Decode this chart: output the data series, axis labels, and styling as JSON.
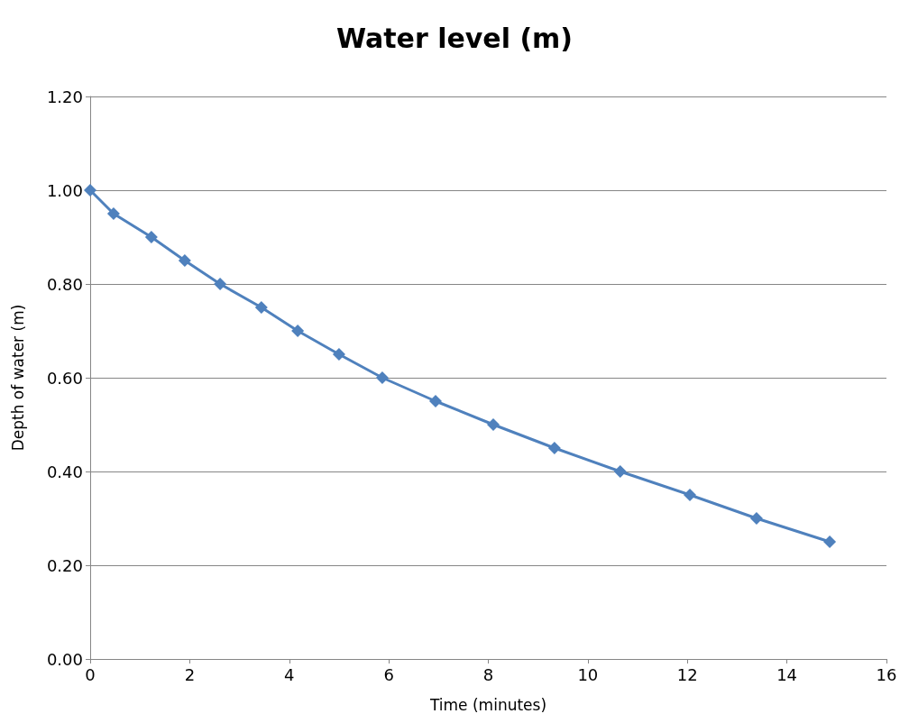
{
  "chart_data": {
    "type": "line",
    "title": "Water level (m)",
    "xlabel": "Time (minutes)",
    "ylabel": "Depth of water (m)",
    "x": [
      0,
      0.47,
      1.23,
      1.9,
      2.61,
      3.44,
      4.17,
      5.0,
      5.87,
      6.94,
      8.1,
      9.33,
      10.65,
      12.05,
      13.39,
      14.86
    ],
    "series": [
      {
        "color": "#4f81bd",
        "values": [
          1.0,
          0.95,
          0.9,
          0.85,
          0.8,
          0.75,
          0.7,
          0.65,
          0.6,
          0.55,
          0.5,
          0.45,
          0.4,
          0.35,
          0.3,
          0.25
        ]
      }
    ],
    "xlim": [
      0,
      16
    ],
    "xticks": [
      0,
      2,
      4,
      6,
      8,
      10,
      12,
      14,
      16
    ],
    "ylim": [
      0,
      1.2
    ],
    "yticks": [
      {
        "value": 0,
        "label": "0.00"
      },
      {
        "value": 0.2,
        "label": "0.20"
      },
      {
        "value": 0.4,
        "label": "0.40"
      },
      {
        "value": 0.6,
        "label": "0.60"
      },
      {
        "value": 0.8,
        "label": "0.80"
      },
      {
        "value": 1,
        "label": "1.00"
      },
      {
        "value": 1.2,
        "label": "1.20"
      }
    ],
    "grid": "y",
    "marker": "diamond",
    "line_style": "solid"
  }
}
